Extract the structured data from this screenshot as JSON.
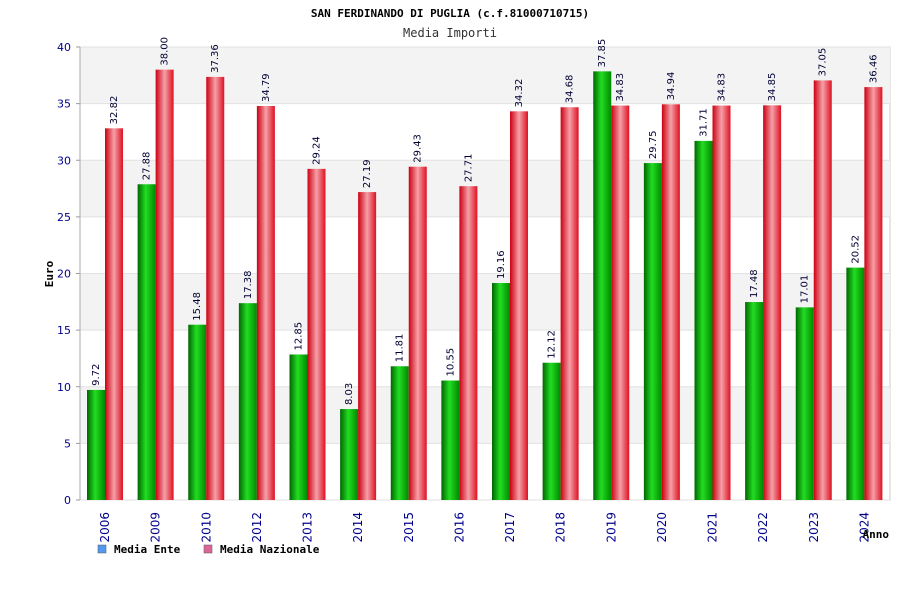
{
  "chart_data": {
    "type": "bar",
    "title": "SAN FERDINANDO DI PUGLIA (c.f.81000710715)",
    "subtitle": "Media Importi",
    "xlabel": "Anno",
    "ylabel": "Euro",
    "ylim": [
      0,
      40
    ],
    "yticks": [
      0,
      5,
      10,
      15,
      20,
      25,
      30,
      35,
      40
    ],
    "grid": true,
    "legend_position": "bottom-left",
    "categories": [
      "2006",
      "2009",
      "2010",
      "2012",
      "2013",
      "2014",
      "2015",
      "2016",
      "2017",
      "2018",
      "2019",
      "2020",
      "2021",
      "2022",
      "2023",
      "2024"
    ],
    "series": [
      {
        "name": "Media Ente",
        "legend_color": "#5599ee",
        "bar_color": "#00bb00",
        "values": [
          9.72,
          27.88,
          15.48,
          17.38,
          12.85,
          8.03,
          11.81,
          10.55,
          19.16,
          12.12,
          37.85,
          29.75,
          31.71,
          17.48,
          17.01,
          20.52
        ]
      },
      {
        "name": "Media Nazionale",
        "legend_color": "#dd6699",
        "bar_color": "#ee2233",
        "values": [
          32.82,
          38.0,
          37.36,
          34.79,
          29.24,
          27.19,
          29.43,
          27.71,
          34.32,
          34.68,
          34.83,
          34.94,
          34.83,
          34.85,
          37.05,
          36.46
        ]
      }
    ]
  }
}
